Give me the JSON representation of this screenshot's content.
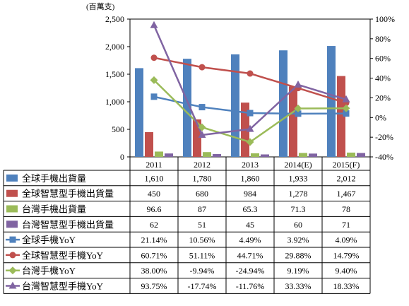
{
  "chart_data": {
    "type": "bar",
    "unit_label": "(百萬支)",
    "categories": [
      "2011",
      "2012",
      "2013",
      "2014(E)",
      "2015(F)"
    ],
    "y_left": {
      "min": 0,
      "max": 2500,
      "step": 500,
      "tick_labels": [
        "0",
        "500",
        "1,000",
        "1,500",
        "2,000",
        "2,500"
      ]
    },
    "y_right": {
      "min": -40,
      "max": 100,
      "step": 20,
      "tick_labels": [
        "-40%",
        "-20%",
        "0%",
        "20%",
        "40%",
        "60%",
        "80%",
        "100%"
      ]
    },
    "grid": false,
    "legend": "data-table-below",
    "bar_series": [
      {
        "name": "全球手機出貨量",
        "color": "#4f81bd",
        "values": [
          1610,
          1780,
          1860,
          1933,
          2012
        ],
        "labels": [
          "1,610",
          "1,780",
          "1,860",
          "1,933",
          "2,012"
        ]
      },
      {
        "name": "全球智慧型手機出貨量",
        "color": "#c0504d",
        "values": [
          450,
          680,
          984,
          1278,
          1467
        ],
        "labels": [
          "450",
          "680",
          "984",
          "1,278",
          "1,467"
        ]
      },
      {
        "name": "台灣手機出貨量",
        "color": "#9bbb59",
        "values": [
          96.6,
          87,
          65.3,
          71.3,
          78
        ],
        "labels": [
          "96.6",
          "87",
          "65.3",
          "71.3",
          "78"
        ]
      },
      {
        "name": "台灣智慧型手機出貨量",
        "color": "#8064a2",
        "values": [
          62,
          51,
          45,
          60,
          71
        ],
        "labels": [
          "62",
          "51",
          "45",
          "60",
          "71"
        ]
      }
    ],
    "line_series": [
      {
        "name": "全球手機YoY",
        "color": "#4f81bd",
        "marker": "square",
        "values": [
          21.14,
          10.56,
          4.49,
          3.92,
          4.09
        ],
        "labels": [
          "21.14%",
          "10.56%",
          "4.49%",
          "3.92%",
          "4.09%"
        ]
      },
      {
        "name": "全球智慧型手機YoY",
        "color": "#c0504d",
        "marker": "circle",
        "values": [
          60.71,
          51.11,
          44.71,
          29.88,
          14.79
        ],
        "labels": [
          "60.71%",
          "51.11%",
          "44.71%",
          "29.88%",
          "14.79%"
        ]
      },
      {
        "name": "台灣手機YoY",
        "color": "#9bbb59",
        "marker": "diamond",
        "values": [
          38.0,
          -9.94,
          -24.94,
          9.19,
          9.4
        ],
        "labels": [
          "38.00%",
          "-9.94%",
          "-24.94%",
          "9.19%",
          "9.40%"
        ]
      },
      {
        "name": "台灣智慧型手機YoY",
        "color": "#8064a2",
        "marker": "triangle",
        "values": [
          93.75,
          -17.74,
          -11.76,
          33.33,
          18.33
        ],
        "labels": [
          "93.75%",
          "-17.74%",
          "-11.76%",
          "33.33%",
          "18.33%"
        ]
      }
    ]
  }
}
